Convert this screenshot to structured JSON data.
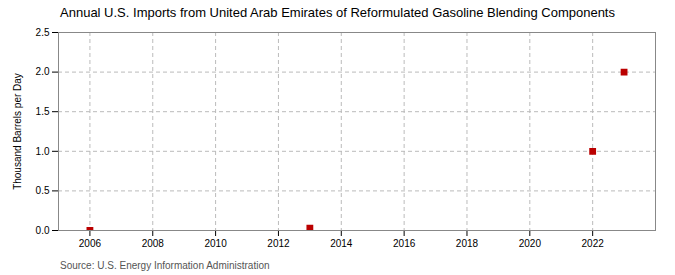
{
  "chart_data": {
    "type": "scatter",
    "title": "Annual U.S. Imports from United Arab Emirates of Reformulated Gasoline Blending Components",
    "ylabel": "Thousand Barrels per Day",
    "annotations": [
      "Source: U.S. Energy Information Administration"
    ],
    "x": [
      2006,
      2013,
      2022,
      2023
    ],
    "values": [
      0.0,
      0.03,
      1.0,
      2.0
    ],
    "color": "#bb0000",
    "marker": "square",
    "xlim": [
      2005.0,
      2024.0
    ],
    "ylim": [
      0.0,
      2.5
    ],
    "xticks": [
      2006,
      2008,
      2010,
      2012,
      2014,
      2016,
      2018,
      2020,
      2022
    ],
    "yticks": [
      {
        "value": 0.0,
        "label": "0.0"
      },
      0.5,
      {
        "value": 1.0,
        "label": "1.0"
      },
      1.5,
      {
        "value": 2.0,
        "label": "2.0"
      },
      2.5
    ],
    "grid": true
  }
}
